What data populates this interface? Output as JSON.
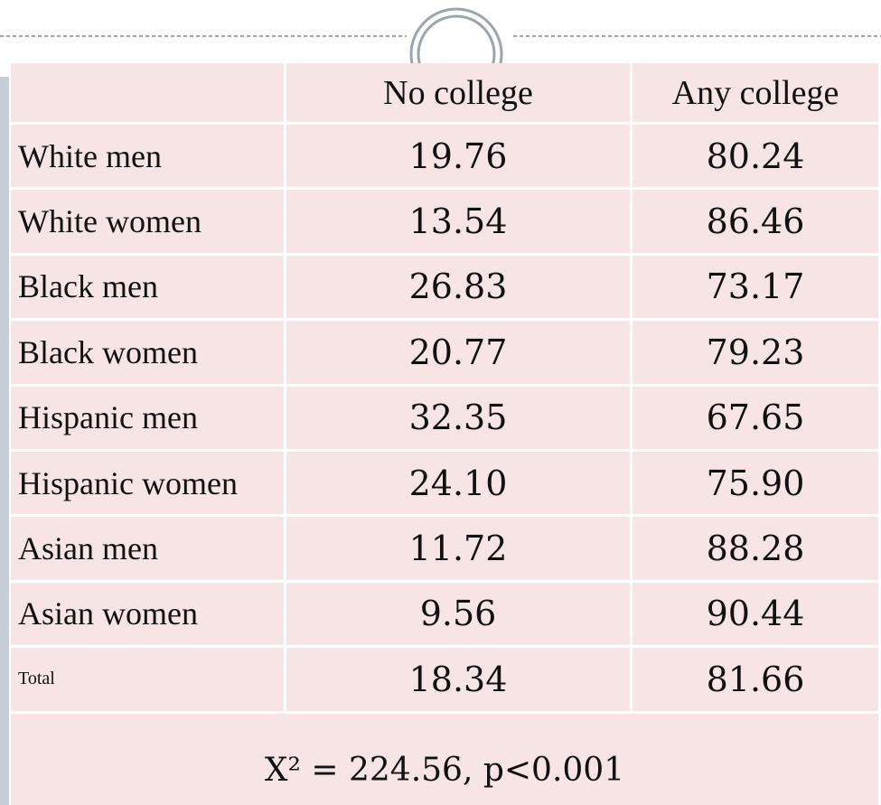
{
  "table": {
    "header": [
      "No college",
      "Any college"
    ],
    "rows": [
      [
        "White men",
        "19.76",
        "80.24"
      ],
      [
        "White women",
        "13.54",
        "86.46"
      ],
      [
        "Black men",
        "26.83",
        "73.17"
      ],
      [
        "Black women",
        "20.77",
        "79.23"
      ],
      [
        "Hispanic men",
        "32.35",
        "67.65"
      ],
      [
        "Hispanic women",
        "24.10",
        "75.90"
      ],
      [
        "Asian men",
        "11.72",
        "88.28"
      ],
      [
        "Asian women",
        "9.56",
        "90.44"
      ],
      [
        "Total",
        "18.34",
        "81.66"
      ]
    ],
    "footer": "X² = 224.56, p<0.001"
  }
}
